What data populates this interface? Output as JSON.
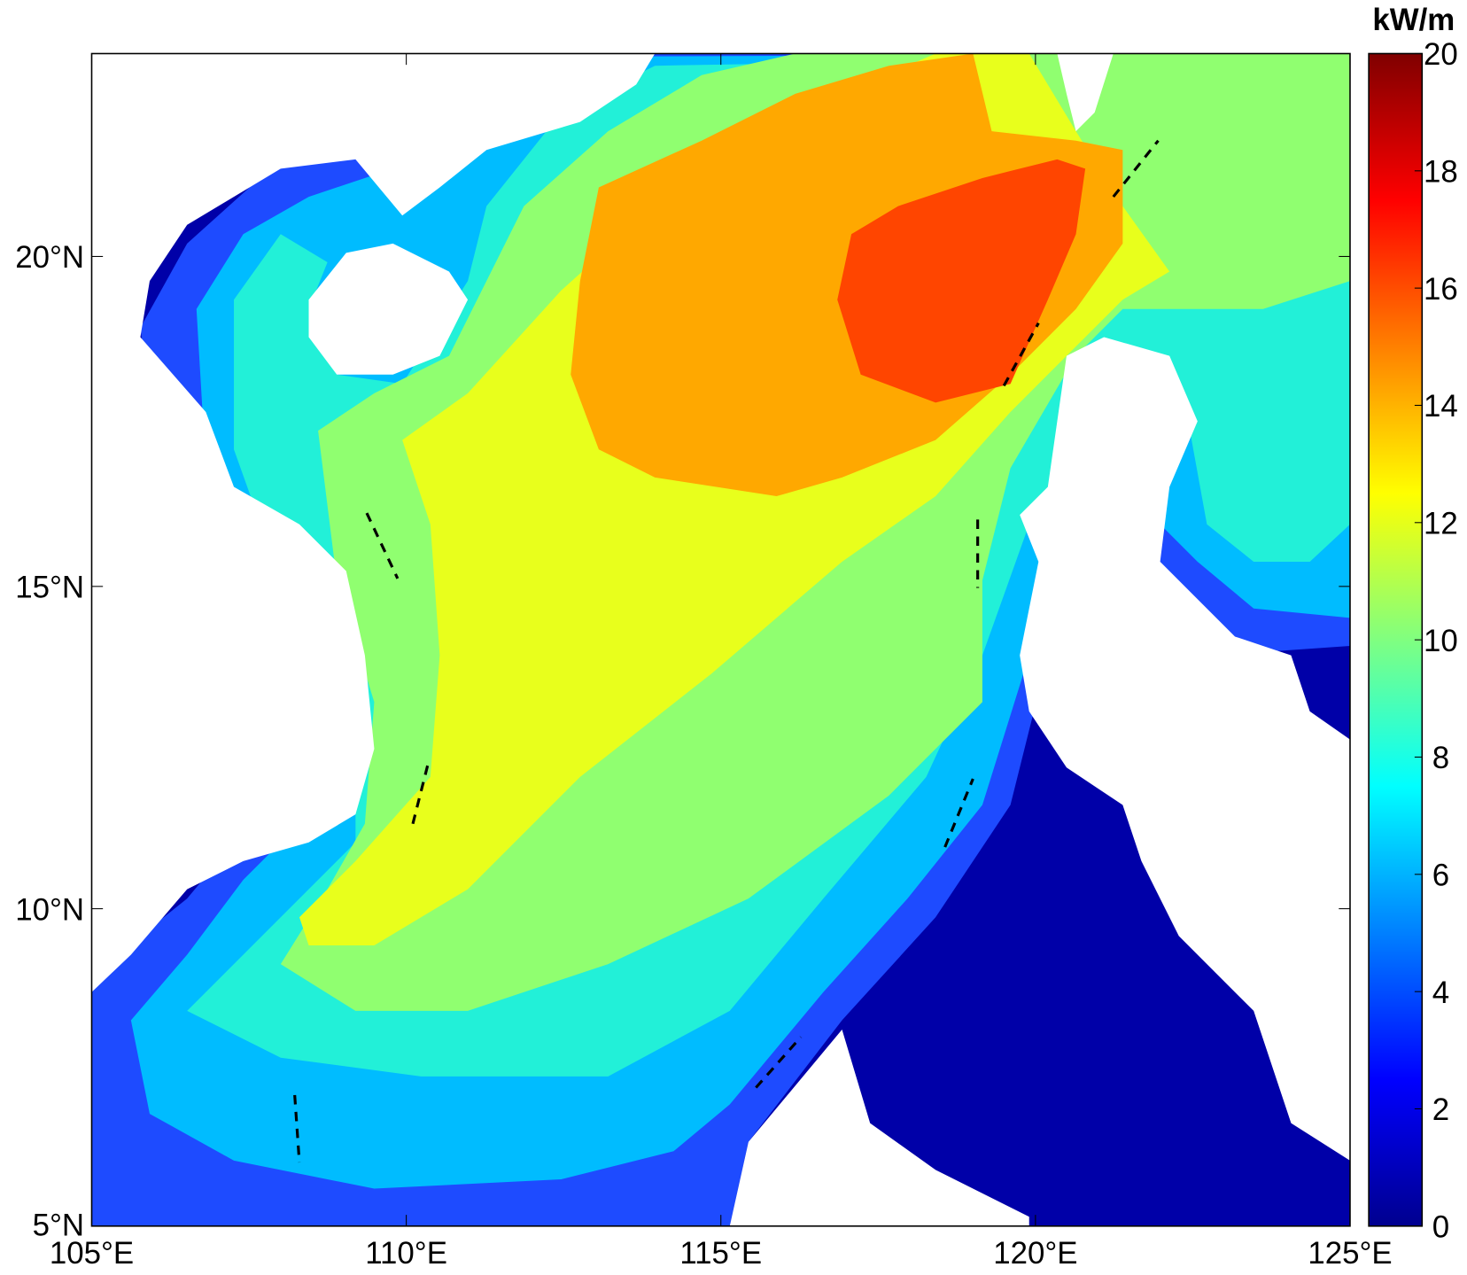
{
  "chart_data": {
    "type": "contour_map",
    "unit": "kW/m",
    "projection": "mercator",
    "xlim": [
      105,
      125
    ],
    "xticks": [
      {
        "value": 105,
        "label": "105°E"
      },
      {
        "value": 110,
        "label": "110°E"
      },
      {
        "value": 115,
        "label": "115°E"
      },
      {
        "value": 120,
        "label": "120°E"
      },
      {
        "value": 125,
        "label": "125°E"
      }
    ],
    "ylim": [
      5,
      23
    ],
    "yticks": [
      {
        "value": 5,
        "label": "5°N"
      },
      {
        "value": 10,
        "label": "10°N"
      },
      {
        "value": 15,
        "label": "15°N"
      },
      {
        "value": 20,
        "label": "20°N"
      }
    ],
    "clim": [
      0,
      20
    ],
    "cticks": [
      0,
      2,
      4,
      6,
      8,
      10,
      12,
      14,
      16,
      18,
      20
    ],
    "colormap": [
      "#00008f",
      "#0000ff",
      "#0080ff",
      "#00ffff",
      "#80ff80",
      "#ffff00",
      "#ff8000",
      "#ff0000",
      "#800000"
    ],
    "levels": [
      0,
      2,
      4,
      6,
      8,
      10,
      12,
      14
    ],
    "level_colors": [
      "#0000a8",
      "#1e4bff",
      "#00bcff",
      "#22f0d8",
      "#90ff70",
      "#e8ff1c",
      "#ffa800",
      "#ff4500"
    ]
  }
}
